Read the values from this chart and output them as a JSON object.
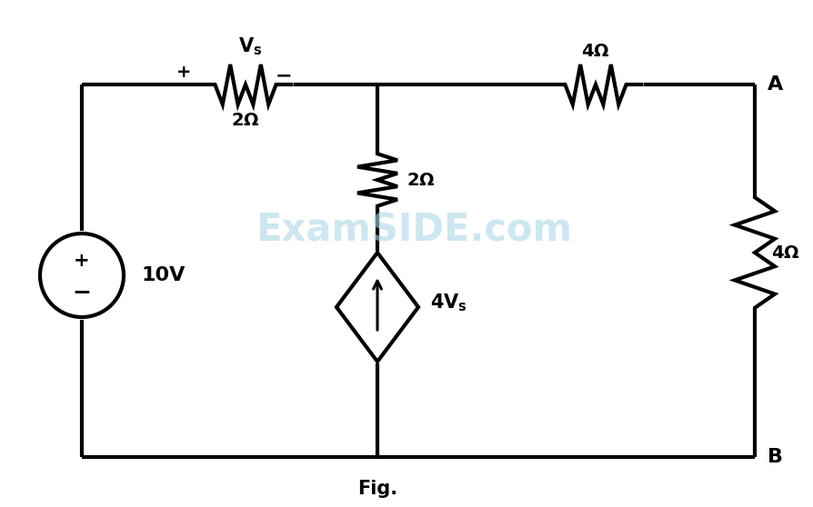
{
  "bg_color": "#ffffff",
  "line_color": "#000000",
  "watermark_color": "#add8e6",
  "watermark_text": "ExamSIDE.com",
  "fig_label": "Fig.",
  "node_A_label": "A",
  "node_B_label": "B",
  "voltage_source_label": "10V",
  "lw": 3.0,
  "figw": 8.95,
  "figh": 5.58,
  "dpi": 100
}
